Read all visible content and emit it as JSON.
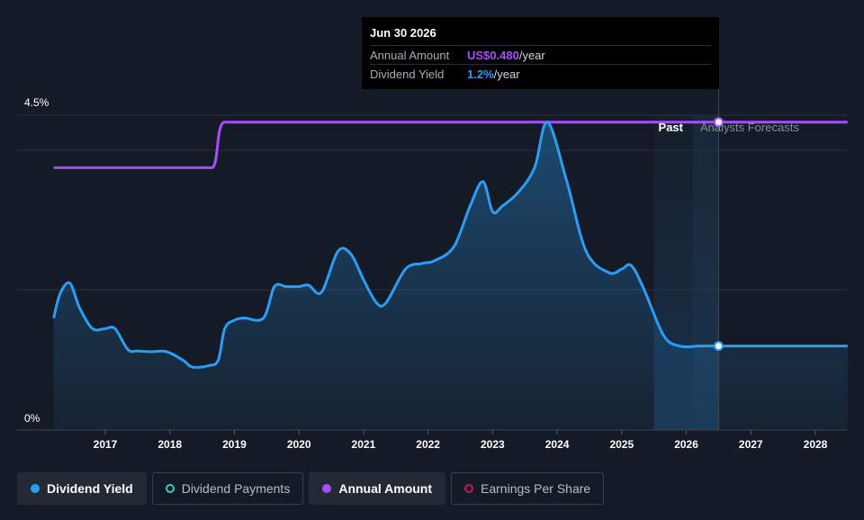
{
  "tooltip": {
    "date": "Jun 30 2026",
    "annual_amount_label": "Annual Amount",
    "annual_amount_value": "US$0.480",
    "annual_amount_unit": "/year",
    "dividend_yield_label": "Dividend Yield",
    "dividend_yield_value": "1.2%",
    "dividend_yield_unit": "/year"
  },
  "regions": {
    "past_label": "Past",
    "forecast_label": "Analysts Forecasts"
  },
  "legend": [
    {
      "label": "Dividend Yield",
      "color": "#2a9df4",
      "active": true
    },
    {
      "label": "Dividend Payments",
      "color": "#3ec8c0",
      "active": false
    },
    {
      "label": "Annual Amount",
      "color": "#a74dff",
      "active": true
    },
    {
      "label": "Earnings Per Share",
      "color": "#c2185b",
      "active": false
    }
  ],
  "colors": {
    "yield": "#2a9df4",
    "amount": "#a74dff",
    "background": "#151b26"
  },
  "chart_data": {
    "type": "line",
    "x_range": [
      2016.2,
      2028.5
    ],
    "y_range": [
      0,
      4.5
    ],
    "y_tick_labels": [
      "4.5%",
      "0%"
    ],
    "x_ticks": [
      "2017",
      "2018",
      "2019",
      "2020",
      "2021",
      "2022",
      "2023",
      "2024",
      "2025",
      "2026",
      "2027",
      "2028"
    ],
    "past_end": 2025.5,
    "forecast_start": 2026.1,
    "tooltip_x": 2026.5,
    "series": [
      {
        "name": "Dividend Yield",
        "unit": "%",
        "points": [
          [
            2016.2,
            1.6
          ],
          [
            2016.3,
            1.95
          ],
          [
            2016.45,
            2.1
          ],
          [
            2016.6,
            1.75
          ],
          [
            2016.8,
            1.45
          ],
          [
            2017.0,
            1.45
          ],
          [
            2017.15,
            1.45
          ],
          [
            2017.35,
            1.15
          ],
          [
            2017.5,
            1.13
          ],
          [
            2017.7,
            1.12
          ],
          [
            2017.95,
            1.12
          ],
          [
            2018.2,
            1.0
          ],
          [
            2018.35,
            0.9
          ],
          [
            2018.6,
            0.92
          ],
          [
            2018.75,
            1.0
          ],
          [
            2018.85,
            1.45
          ],
          [
            2019.0,
            1.57
          ],
          [
            2019.15,
            1.6
          ],
          [
            2019.45,
            1.6
          ],
          [
            2019.62,
            2.05
          ],
          [
            2019.8,
            2.05
          ],
          [
            2020.0,
            2.05
          ],
          [
            2020.15,
            2.07
          ],
          [
            2020.35,
            1.97
          ],
          [
            2020.6,
            2.55
          ],
          [
            2020.8,
            2.52
          ],
          [
            2021.0,
            2.15
          ],
          [
            2021.2,
            1.82
          ],
          [
            2021.35,
            1.82
          ],
          [
            2021.65,
            2.3
          ],
          [
            2021.9,
            2.38
          ],
          [
            2022.1,
            2.42
          ],
          [
            2022.4,
            2.62
          ],
          [
            2022.65,
            3.2
          ],
          [
            2022.85,
            3.55
          ],
          [
            2023.0,
            3.12
          ],
          [
            2023.15,
            3.2
          ],
          [
            2023.4,
            3.4
          ],
          [
            2023.65,
            3.75
          ],
          [
            2023.85,
            4.4
          ],
          [
            2024.15,
            3.55
          ],
          [
            2024.45,
            2.55
          ],
          [
            2024.8,
            2.25
          ],
          [
            2025.0,
            2.3
          ],
          [
            2025.15,
            2.35
          ],
          [
            2025.35,
            2.0
          ],
          [
            2025.65,
            1.35
          ],
          [
            2025.9,
            1.2
          ],
          [
            2026.2,
            1.2
          ],
          [
            2026.5,
            1.2
          ],
          [
            2027.0,
            1.2
          ],
          [
            2028.5,
            1.2
          ]
        ]
      },
      {
        "name": "Annual Amount",
        "points": [
          [
            2016.2,
            3.75
          ],
          [
            2018.65,
            3.75
          ],
          [
            2018.85,
            4.4
          ],
          [
            2028.5,
            4.4
          ]
        ]
      }
    ]
  }
}
